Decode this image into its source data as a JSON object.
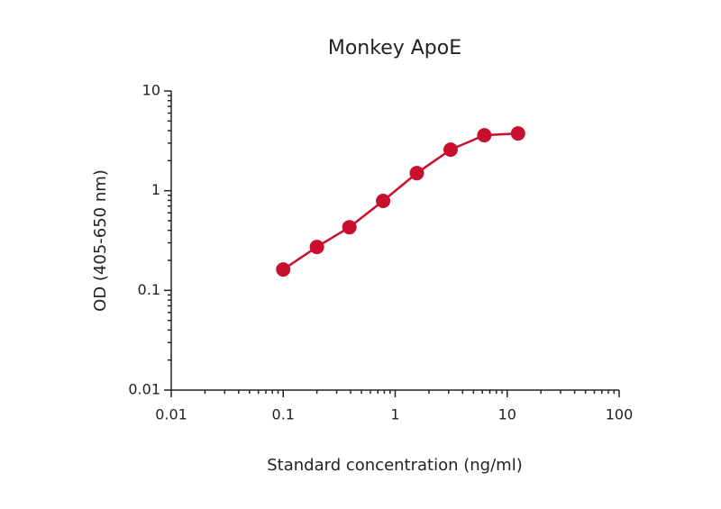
{
  "chart_data": {
    "type": "line",
    "title": "Monkey ApoE",
    "x_label": "Standard concentration (ng/ml)",
    "y_label": "OD (405-650 nm)",
    "x": [
      0.1,
      0.2,
      0.39,
      0.78,
      1.56,
      3.125,
      6.25,
      12.5
    ],
    "series": [
      {
        "name": "Monkey ApoE",
        "color": "#c8102e",
        "values": [
          0.162,
          0.273,
          0.43,
          0.79,
          1.5,
          2.58,
          3.6,
          3.75
        ]
      }
    ],
    "xlim": [
      0.01,
      100
    ],
    "ylim": [
      0.01,
      10
    ],
    "xticks": [
      0.01,
      0.1,
      1,
      10,
      100
    ],
    "yticks": [
      0.01,
      0.1,
      1,
      10
    ],
    "xscale": "log",
    "yscale": "log",
    "grid": false
  }
}
